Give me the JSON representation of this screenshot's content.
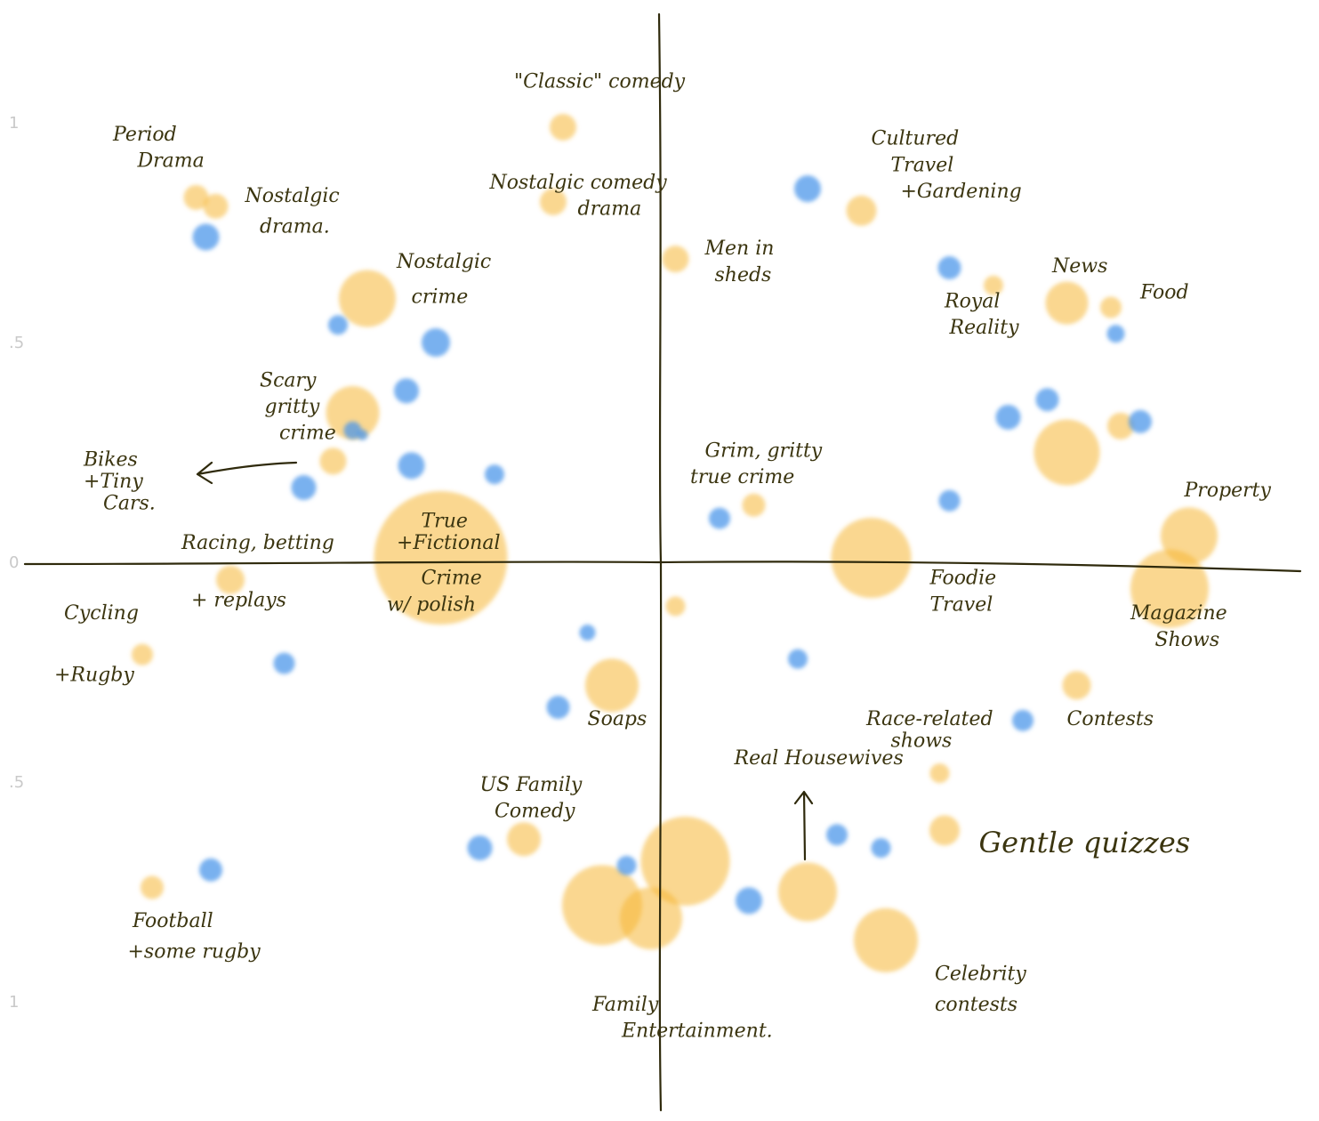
{
  "chart_data": {
    "type": "scatter",
    "title": "",
    "xlabel": "",
    "ylabel": "",
    "xlim": [
      -1.3,
      1.3
    ],
    "ylim": [
      -1.25,
      1.25
    ],
    "y_ticks": [
      "1",
      ".5",
      "0",
      ".5",
      "1"
    ],
    "y_tick_values": [
      1,
      0.5,
      0,
      -0.5,
      -1
    ],
    "colors": {
      "orange": "#f6b733",
      "blue": "#4c97ea",
      "ink": "#3b3510"
    },
    "series": [
      {
        "name": "orange",
        "points": [
          {
            "x": -0.2,
            "y": 0.99,
            "s": 15
          },
          {
            "x": -0.95,
            "y": 0.83,
            "s": 14
          },
          {
            "x": -0.91,
            "y": 0.81,
            "s": 14
          },
          {
            "x": -0.22,
            "y": 0.82,
            "s": 15
          },
          {
            "x": 0.03,
            "y": 0.69,
            "s": 15
          },
          {
            "x": 0.41,
            "y": 0.8,
            "s": 17
          },
          {
            "x": -0.6,
            "y": 0.6,
            "s": 32
          },
          {
            "x": 0.68,
            "y": 0.63,
            "s": 11
          },
          {
            "x": 0.83,
            "y": 0.59,
            "s": 24
          },
          {
            "x": 0.92,
            "y": 0.58,
            "s": 12
          },
          {
            "x": -0.63,
            "y": 0.34,
            "s": 30
          },
          {
            "x": -0.67,
            "y": 0.23,
            "s": 15
          },
          {
            "x": 0.19,
            "y": 0.13,
            "s": 13
          },
          {
            "x": 0.83,
            "y": 0.25,
            "s": 37
          },
          {
            "x": 0.94,
            "y": 0.31,
            "s": 15
          },
          {
            "x": -0.45,
            "y": 0.01,
            "s": 75
          },
          {
            "x": 0.43,
            "y": 0.01,
            "s": 45
          },
          {
            "x": 1.08,
            "y": 0.06,
            "s": 32
          },
          {
            "x": 1.04,
            "y": -0.06,
            "s": 44
          },
          {
            "x": -0.88,
            "y": -0.04,
            "s": 16
          },
          {
            "x": 0.03,
            "y": -0.1,
            "s": 11
          },
          {
            "x": -1.06,
            "y": -0.21,
            "s": 12
          },
          {
            "x": -0.1,
            "y": -0.28,
            "s": 30
          },
          {
            "x": 0.85,
            "y": -0.28,
            "s": 16
          },
          {
            "x": 0.57,
            "y": -0.48,
            "s": 11
          },
          {
            "x": 0.58,
            "y": -0.61,
            "s": 17
          },
          {
            "x": -0.28,
            "y": -0.63,
            "s": 19
          },
          {
            "x": 0.05,
            "y": -0.68,
            "s": 50
          },
          {
            "x": -0.12,
            "y": -0.78,
            "s": 45
          },
          {
            "x": -0.02,
            "y": -0.81,
            "s": 35
          },
          {
            "x": 0.3,
            "y": -0.75,
            "s": 33
          },
          {
            "x": -1.04,
            "y": -0.74,
            "s": 13
          },
          {
            "x": 0.46,
            "y": -0.86,
            "s": 36
          }
        ]
      },
      {
        "name": "blue",
        "points": [
          {
            "x": -0.93,
            "y": 0.74,
            "s": 15
          },
          {
            "x": 0.3,
            "y": 0.85,
            "s": 15
          },
          {
            "x": 0.59,
            "y": 0.67,
            "s": 13
          },
          {
            "x": 0.93,
            "y": 0.52,
            "s": 10
          },
          {
            "x": -0.66,
            "y": 0.54,
            "s": 11
          },
          {
            "x": -0.46,
            "y": 0.5,
            "s": 16
          },
          {
            "x": -0.52,
            "y": 0.39,
            "s": 14
          },
          {
            "x": 0.79,
            "y": 0.37,
            "s": 13
          },
          {
            "x": 0.71,
            "y": 0.33,
            "s": 14
          },
          {
            "x": 0.98,
            "y": 0.32,
            "s": 13
          },
          {
            "x": -0.63,
            "y": 0.3,
            "s": 10
          },
          {
            "x": -0.61,
            "y": 0.29,
            "s": 6
          },
          {
            "x": -0.51,
            "y": 0.22,
            "s": 15
          },
          {
            "x": -0.34,
            "y": 0.2,
            "s": 11
          },
          {
            "x": -0.73,
            "y": 0.17,
            "s": 14
          },
          {
            "x": 0.59,
            "y": 0.14,
            "s": 12
          },
          {
            "x": 0.12,
            "y": 0.1,
            "s": 12
          },
          {
            "x": -0.15,
            "y": -0.16,
            "s": 9
          },
          {
            "x": 0.28,
            "y": -0.22,
            "s": 11
          },
          {
            "x": -0.77,
            "y": -0.23,
            "s": 12
          },
          {
            "x": -0.21,
            "y": -0.33,
            "s": 13
          },
          {
            "x": 0.74,
            "y": -0.36,
            "s": 12
          },
          {
            "x": 0.36,
            "y": -0.62,
            "s": 12
          },
          {
            "x": 0.45,
            "y": -0.65,
            "s": 11
          },
          {
            "x": -0.37,
            "y": -0.65,
            "s": 14
          },
          {
            "x": -0.07,
            "y": -0.69,
            "s": 11
          },
          {
            "x": -0.92,
            "y": -0.7,
            "s": 13
          },
          {
            "x": 0.18,
            "y": -0.77,
            "s": 15
          }
        ]
      }
    ],
    "annotations": [
      {
        "text": "\"Classic\" comedy",
        "x": -0.3,
        "y": 1.08
      },
      {
        "text": "Period",
        "x": -1.12,
        "y": 0.96
      },
      {
        "text": "Drama",
        "x": -1.07,
        "y": 0.9
      },
      {
        "text": "Nostalgic",
        "x": -0.85,
        "y": 0.82
      },
      {
        "text": "drama.",
        "x": -0.82,
        "y": 0.75
      },
      {
        "text": "Nostalgic comedy",
        "x": -0.35,
        "y": 0.85
      },
      {
        "text": "drama",
        "x": -0.17,
        "y": 0.79
      },
      {
        "text": "Cultured",
        "x": 0.43,
        "y": 0.95
      },
      {
        "text": "Travel",
        "x": 0.47,
        "y": 0.89
      },
      {
        "text": "+Gardening",
        "x": 0.49,
        "y": 0.83
      },
      {
        "text": "Men in",
        "x": 0.09,
        "y": 0.7
      },
      {
        "text": "sheds",
        "x": 0.11,
        "y": 0.64
      },
      {
        "text": "Nostalgic",
        "x": -0.54,
        "y": 0.67
      },
      {
        "text": "crime",
        "x": -0.51,
        "y": 0.59
      },
      {
        "text": "News",
        "x": 0.8,
        "y": 0.66
      },
      {
        "text": "Food",
        "x": 0.98,
        "y": 0.6
      },
      {
        "text": "Royal",
        "x": 0.58,
        "y": 0.58
      },
      {
        "text": "Reality",
        "x": 0.59,
        "y": 0.52
      },
      {
        "text": "Scary",
        "x": -0.82,
        "y": 0.4
      },
      {
        "text": "gritty",
        "x": -0.81,
        "y": 0.34
      },
      {
        "text": "crime",
        "x": -0.78,
        "y": 0.28
      },
      {
        "text": "Grim, gritty",
        "x": 0.09,
        "y": 0.24
      },
      {
        "text": "true crime",
        "x": 0.06,
        "y": 0.18
      },
      {
        "text": "Bikes",
        "x": -1.18,
        "y": 0.22
      },
      {
        "text": "+Tiny",
        "x": -1.18,
        "y": 0.17
      },
      {
        "text": "Cars.",
        "x": -1.14,
        "y": 0.12
      },
      {
        "text": "Property",
        "x": 1.07,
        "y": 0.15
      },
      {
        "text": "True",
        "x": -0.49,
        "y": 0.08
      },
      {
        "text": "+Fictional",
        "x": -0.54,
        "y": 0.03
      },
      {
        "text": "Racing, betting",
        "x": -0.98,
        "y": 0.03
      },
      {
        "text": "Crime",
        "x": -0.49,
        "y": -0.05
      },
      {
        "text": "w/ polish",
        "x": -0.56,
        "y": -0.11
      },
      {
        "text": "Foodie",
        "x": 0.55,
        "y": -0.05
      },
      {
        "text": "Travel",
        "x": 0.55,
        "y": -0.11
      },
      {
        "text": "+ replays",
        "x": -0.96,
        "y": -0.1
      },
      {
        "text": "Cycling",
        "x": -1.22,
        "y": -0.13
      },
      {
        "text": "Magazine",
        "x": 0.96,
        "y": -0.13
      },
      {
        "text": "Shows",
        "x": 1.01,
        "y": -0.19
      },
      {
        "text": "+Rugby",
        "x": -1.24,
        "y": -0.27
      },
      {
        "text": "Soaps",
        "x": -0.15,
        "y": -0.37
      },
      {
        "text": "Contests",
        "x": 0.83,
        "y": -0.37
      },
      {
        "text": "Race-related",
        "x": 0.42,
        "y": -0.37
      },
      {
        "text": "shows",
        "x": 0.47,
        "y": -0.42
      },
      {
        "text": "Real Housewives",
        "x": 0.15,
        "y": -0.46
      },
      {
        "text": "US Family",
        "x": -0.37,
        "y": -0.52
      },
      {
        "text": "Comedy",
        "x": -0.34,
        "y": -0.58
      },
      {
        "text": "Gentle quizzes",
        "x": 0.65,
        "y": -0.66
      },
      {
        "text": "Football",
        "x": -1.08,
        "y": -0.83
      },
      {
        "text": "+some rugby",
        "x": -1.09,
        "y": -0.9
      },
      {
        "text": "Family",
        "x": -0.14,
        "y": -1.02
      },
      {
        "text": "Celebrity",
        "x": 0.56,
        "y": -0.95
      },
      {
        "text": "Entertainment.",
        "x": -0.08,
        "y": -1.08
      },
      {
        "text": "contests",
        "x": 0.56,
        "y": -1.02
      }
    ]
  }
}
